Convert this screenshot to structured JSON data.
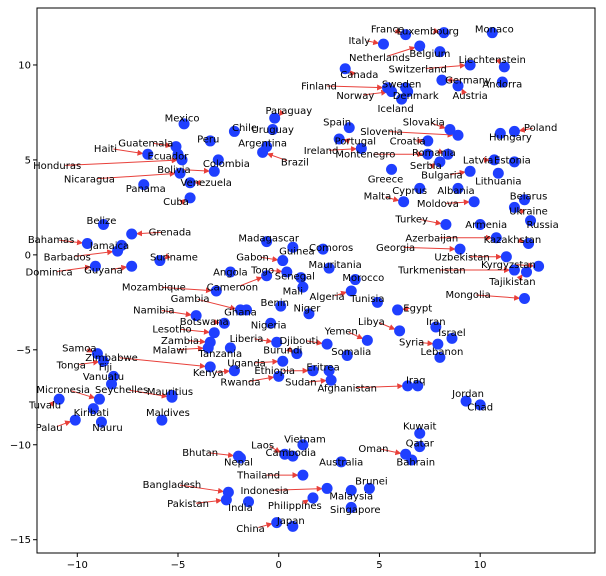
{
  "chart_data": {
    "type": "scatter",
    "title": "",
    "xlabel": "",
    "ylabel": "",
    "xlim": [
      -12,
      15.7
    ],
    "ylim": [
      -15.7,
      13
    ],
    "grid": false,
    "x_ticks": [
      -10,
      -5,
      0,
      5,
      10
    ],
    "y_ticks": [
      10,
      5,
      0,
      -5,
      -10,
      -15
    ],
    "marker_color": "#1f3fff",
    "arrow_color": "#e8403a",
    "points": [
      {
        "name": "France",
        "x": 6.3,
        "y": 11.6,
        "lx": 5.4,
        "ly": 11.9
      },
      {
        "name": "Luxembourg",
        "x": 8.2,
        "y": 11.7,
        "lx": 7.4,
        "ly": 11.8
      },
      {
        "name": "Monaco",
        "x": 10.6,
        "y": 11.7,
        "lx": 10.7,
        "ly": 11.9
      },
      {
        "name": "Italy",
        "x": 5.2,
        "y": 11.1,
        "lx": 4.0,
        "ly": 11.3
      },
      {
        "name": "Netherlands",
        "x": 7.0,
        "y": 11.0,
        "lx": 5.0,
        "ly": 10.4
      },
      {
        "name": "Belgium",
        "x": 8.0,
        "y": 10.7,
        "lx": 7.5,
        "ly": 10.6
      },
      {
        "name": "Liechtenstein",
        "x": 11.2,
        "y": 9.9,
        "lx": 10.6,
        "ly": 10.3
      },
      {
        "name": "Switzerland",
        "x": 9.5,
        "y": 10.0,
        "lx": 6.9,
        "ly": 9.8
      },
      {
        "name": "Canada",
        "x": 3.3,
        "y": 9.8,
        "lx": 4.0,
        "ly": 9.5
      },
      {
        "name": "Germany",
        "x": 8.1,
        "y": 9.2,
        "lx": 9.4,
        "ly": 9.2
      },
      {
        "name": "Andorra",
        "x": 11.1,
        "y": 9.1,
        "lx": 11.1,
        "ly": 9.0
      },
      {
        "name": "Finland",
        "x": 5.4,
        "y": 8.8,
        "lx": 2.0,
        "ly": 8.9
      },
      {
        "name": "Sweden",
        "x": 6.3,
        "y": 8.8,
        "lx": 6.1,
        "ly": 9.0
      },
      {
        "name": "Norway",
        "x": 5.6,
        "y": 8.6,
        "lx": 3.8,
        "ly": 8.4
      },
      {
        "name": "Denmark",
        "x": 6.4,
        "y": 8.6,
        "lx": 6.8,
        "ly": 8.4
      },
      {
        "name": "Austria",
        "x": 8.9,
        "y": 8.9,
        "lx": 9.5,
        "ly": 8.4
      },
      {
        "name": "Iceland",
        "x": 6.1,
        "y": 8.2,
        "lx": 5.8,
        "ly": 7.7
      },
      {
        "name": "Mexico",
        "x": -4.7,
        "y": 6.9,
        "lx": -4.8,
        "ly": 7.2
      },
      {
        "name": "Paraguay",
        "x": -0.2,
        "y": 7.2,
        "lx": 0.5,
        "ly": 7.6
      },
      {
        "name": "Spain",
        "x": 3.5,
        "y": 6.7,
        "lx": 2.9,
        "ly": 7.0
      },
      {
        "name": "Slovakia",
        "x": 8.5,
        "y": 6.6,
        "lx": 7.2,
        "ly": 7.0
      },
      {
        "name": "Poland",
        "x": 11.7,
        "y": 6.5,
        "lx": 13.0,
        "ly": 6.7
      },
      {
        "name": "Chile",
        "x": -2.2,
        "y": 6.5,
        "lx": -1.7,
        "ly": 6.7
      },
      {
        "name": "Uruguay",
        "x": -0.3,
        "y": 6.6,
        "lx": -0.3,
        "ly": 6.6
      },
      {
        "name": "Slovenia",
        "x": 8.9,
        "y": 6.3,
        "lx": 5.1,
        "ly": 6.5
      },
      {
        "name": "Hungary",
        "x": 11.0,
        "y": 6.4,
        "lx": 11.5,
        "ly": 6.2
      },
      {
        "name": "Peru",
        "x": -3.4,
        "y": 6.0,
        "lx": -3.5,
        "ly": 6.1
      },
      {
        "name": "Portugal",
        "x": 3.0,
        "y": 6.1,
        "lx": 3.8,
        "ly": 6.0
      },
      {
        "name": "Croatia",
        "x": 7.4,
        "y": 6.0,
        "lx": 6.4,
        "ly": 6.0
      },
      {
        "name": "Argentina",
        "x": -0.6,
        "y": 5.7,
        "lx": -0.8,
        "ly": 5.9
      },
      {
        "name": "Guatemala",
        "x": -5.1,
        "y": 5.7,
        "lx": -6.6,
        "ly": 5.9
      },
      {
        "name": "Ireland",
        "x": 4.1,
        "y": 5.6,
        "lx": 2.1,
        "ly": 5.5
      },
      {
        "name": "Haiti",
        "x": -6.5,
        "y": 5.3,
        "lx": -8.6,
        "ly": 5.6
      },
      {
        "name": "Montenegro",
        "x": 7.4,
        "y": 5.3,
        "lx": 4.3,
        "ly": 5.3
      },
      {
        "name": "Romania",
        "x": 8.4,
        "y": 5.3,
        "lx": 7.7,
        "ly": 5.4
      },
      {
        "name": "Ecuador",
        "x": -5.0,
        "y": 5.3,
        "lx": -5.5,
        "ly": 5.2
      },
      {
        "name": "Estonia",
        "x": 11.7,
        "y": 4.9,
        "lx": 11.6,
        "ly": 5.0
      },
      {
        "name": "Latvia",
        "x": 10.7,
        "y": 5.0,
        "lx": 9.9,
        "ly": 5.0
      },
      {
        "name": "Brazil",
        "x": -0.8,
        "y": 5.4,
        "lx": 0.8,
        "ly": 4.9
      },
      {
        "name": "Honduras",
        "x": -4.8,
        "y": 5.0,
        "lx": -11.0,
        "ly": 4.7
      },
      {
        "name": "Colombia",
        "x": -3.0,
        "y": 5.0,
        "lx": -2.6,
        "ly": 4.8
      },
      {
        "name": "Serbia",
        "x": 8.0,
        "y": 4.9,
        "lx": 7.3,
        "ly": 4.7
      },
      {
        "name": "Bolivia",
        "x": -3.2,
        "y": 4.4,
        "lx": -5.2,
        "ly": 4.5
      },
      {
        "name": "Nicaragua",
        "x": -4.9,
        "y": 4.3,
        "lx": -9.4,
        "ly": 4.0
      },
      {
        "name": "Bulgaria",
        "x": 9.5,
        "y": 4.4,
        "lx": 8.1,
        "ly": 4.2
      },
      {
        "name": "Lithuania",
        "x": 10.9,
        "y": 4.3,
        "lx": 10.9,
        "ly": 3.9
      },
      {
        "name": "Greece",
        "x": 5.6,
        "y": 4.5,
        "lx": 5.3,
        "ly": 4.0
      },
      {
        "name": "Venezuela",
        "x": -4.4,
        "y": 3.8,
        "lx": -3.6,
        "ly": 3.8
      },
      {
        "name": "Panama",
        "x": -6.7,
        "y": 3.7,
        "lx": -6.6,
        "ly": 3.5
      },
      {
        "name": "Cyprus",
        "x": 7.0,
        "y": 3.5,
        "lx": 6.5,
        "ly": 3.4
      },
      {
        "name": "Albania",
        "x": 8.9,
        "y": 3.5,
        "lx": 8.8,
        "ly": 3.4
      },
      {
        "name": "Belarus",
        "x": 12.2,
        "y": 2.9,
        "lx": 12.4,
        "ly": 3.1
      },
      {
        "name": "Malta",
        "x": 6.2,
        "y": 2.8,
        "lx": 4.9,
        "ly": 3.1
      },
      {
        "name": "Moldova",
        "x": 9.7,
        "y": 2.8,
        "lx": 7.9,
        "ly": 2.7
      },
      {
        "name": "Ukraine",
        "x": 11.7,
        "y": 2.5,
        "lx": 12.4,
        "ly": 2.3
      },
      {
        "name": "Cuba",
        "x": -4.4,
        "y": 3.0,
        "lx": -5.1,
        "ly": 2.8
      },
      {
        "name": "Belize",
        "x": -8.7,
        "y": 1.6,
        "lx": -8.8,
        "ly": 1.8
      },
      {
        "name": "Turkey",
        "x": 8.3,
        "y": 1.6,
        "lx": 6.6,
        "ly": 1.9
      },
      {
        "name": "Armenia",
        "x": 10.0,
        "y": 1.6,
        "lx": 10.3,
        "ly": 1.6
      },
      {
        "name": "Russia",
        "x": 12.5,
        "y": 1.8,
        "lx": 13.1,
        "ly": 1.6
      },
      {
        "name": "Grenada",
        "x": -7.3,
        "y": 1.1,
        "lx": -5.4,
        "ly": 1.2
      },
      {
        "name": "Madagascar",
        "x": -0.6,
        "y": 0.7,
        "lx": -0.5,
        "ly": 0.9
      },
      {
        "name": "Azerbaijan",
        "x": 10.8,
        "y": 0.9,
        "lx": 7.6,
        "ly": 0.9
      },
      {
        "name": "Kazakhstan",
        "x": 12.4,
        "y": 0.6,
        "lx": 11.6,
        "ly": 0.8
      },
      {
        "name": "Bahamas",
        "x": -9.5,
        "y": 0.6,
        "lx": -11.3,
        "ly": 0.8
      },
      {
        "name": "Jamaica",
        "x": -7.8,
        "y": 0.5,
        "lx": -8.4,
        "ly": 0.5
      },
      {
        "name": "Guinea",
        "x": 0.7,
        "y": 0.4,
        "lx": 0.9,
        "ly": 0.2
      },
      {
        "name": "Comoros",
        "x": 2.2,
        "y": 0.3,
        "lx": 2.6,
        "ly": 0.4
      },
      {
        "name": "Georgia",
        "x": 9.0,
        "y": 0.3,
        "lx": 5.8,
        "ly": 0.4
      },
      {
        "name": "Gabon",
        "x": 0.2,
        "y": -0.3,
        "lx": -1.3,
        "ly": -0.1
      },
      {
        "name": "Barbados",
        "x": -8.0,
        "y": 0.2,
        "lx": -10.5,
        "ly": -0.1
      },
      {
        "name": "Suriname",
        "x": -5.9,
        "y": -0.3,
        "lx": -5.2,
        "ly": -0.1
      },
      {
        "name": "Uzbekistan",
        "x": 11.3,
        "y": -0.1,
        "lx": 9.1,
        "ly": -0.1
      },
      {
        "name": "Kyrgyzstan",
        "x": 12.9,
        "y": -0.6,
        "lx": 11.4,
        "ly": -0.5
      },
      {
        "name": "Mauritania",
        "x": 2.5,
        "y": -0.7,
        "lx": 2.8,
        "ly": -0.5
      },
      {
        "name": "Angola",
        "x": -2.4,
        "y": -0.9,
        "lx": -2.4,
        "ly": -0.9
      },
      {
        "name": "Togo",
        "x": 0.4,
        "y": -0.9,
        "lx": -0.8,
        "ly": -0.8
      },
      {
        "name": "Dominica",
        "x": -9.1,
        "y": -0.6,
        "lx": -11.4,
        "ly": -0.9
      },
      {
        "name": "Guyana",
        "x": -7.3,
        "y": -0.6,
        "lx": -8.7,
        "ly": -0.8
      },
      {
        "name": "Turkmenistan",
        "x": 11.7,
        "y": -0.8,
        "lx": 7.6,
        "ly": -0.8
      },
      {
        "name": "Senegal",
        "x": 1.1,
        "y": -1.2,
        "lx": 0.8,
        "ly": -1.1
      },
      {
        "name": "Morocco",
        "x": 3.8,
        "y": -1.3,
        "lx": 4.2,
        "ly": -1.2
      },
      {
        "name": "Tajikistan",
        "x": 12.3,
        "y": -0.9,
        "lx": 11.6,
        "ly": -1.4
      },
      {
        "name": "Cameroon",
        "x": -0.6,
        "y": -1.1,
        "lx": -2.3,
        "ly": -1.7
      },
      {
        "name": "Mali",
        "x": 1.2,
        "y": -1.7,
        "lx": 0.7,
        "ly": -1.9
      },
      {
        "name": "Mozambique",
        "x": -3.1,
        "y": -1.9,
        "lx": -6.2,
        "ly": -1.7
      },
      {
        "name": "Algeria",
        "x": 3.6,
        "y": -1.9,
        "lx": 2.4,
        "ly": -2.2
      },
      {
        "name": "Mongolia",
        "x": 12.2,
        "y": -2.3,
        "lx": 9.4,
        "ly": -2.1
      },
      {
        "name": "Gambia",
        "x": -1.9,
        "y": -2.9,
        "lx": -4.4,
        "ly": -2.3
      },
      {
        "name": "Benin",
        "x": 0.1,
        "y": -2.7,
        "lx": -0.2,
        "ly": -2.5
      },
      {
        "name": "Tunisia",
        "x": 4.9,
        "y": -2.5,
        "lx": 4.4,
        "ly": -2.3
      },
      {
        "name": "Niger",
        "x": 1.5,
        "y": -3.1,
        "lx": 1.4,
        "ly": -2.8
      },
      {
        "name": "Egypt",
        "x": 5.9,
        "y": -2.9,
        "lx": 6.9,
        "ly": -2.8
      },
      {
        "name": "Namibia",
        "x": -4.1,
        "y": -3.2,
        "lx": -6.2,
        "ly": -2.9
      },
      {
        "name": "Ghana",
        "x": -1.6,
        "y": -2.9,
        "lx": -1.9,
        "ly": -3.0
      },
      {
        "name": "Botswana",
        "x": -2.7,
        "y": -3.6,
        "lx": -3.7,
        "ly": -3.5
      },
      {
        "name": "Iran",
        "x": 7.8,
        "y": -3.8,
        "lx": 7.8,
        "ly": -3.5
      },
      {
        "name": "Libya",
        "x": 6.0,
        "y": -4.0,
        "lx": 4.6,
        "ly": -3.5
      },
      {
        "name": "Nigeria",
        "x": -0.4,
        "y": -3.6,
        "lx": -0.5,
        "ly": -3.7
      },
      {
        "name": "Lesotho",
        "x": -3.2,
        "y": -4.1,
        "lx": -5.3,
        "ly": -3.9
      },
      {
        "name": "Yemen",
        "x": 4.4,
        "y": -4.5,
        "lx": 3.1,
        "ly": -4.0
      },
      {
        "name": "Israel",
        "x": 8.6,
        "y": -4.4,
        "lx": 8.6,
        "ly": -4.1
      },
      {
        "name": "Liberia",
        "x": -0.1,
        "y": -4.6,
        "lx": -1.6,
        "ly": -4.4
      },
      {
        "name": "Djibouti",
        "x": 2.4,
        "y": -4.7,
        "lx": 1.0,
        "ly": -4.5
      },
      {
        "name": "Zambia",
        "x": -3.4,
        "y": -4.6,
        "lx": -4.9,
        "ly": -4.5
      },
      {
        "name": "Syria",
        "x": 7.9,
        "y": -4.7,
        "lx": 6.6,
        "ly": -4.6
      },
      {
        "name": "Samoa",
        "x": -9.0,
        "y": -5.2,
        "lx": -9.9,
        "ly": -4.9
      },
      {
        "name": "Malawi",
        "x": -3.5,
        "y": -4.9,
        "lx": -5.4,
        "ly": -5.0
      },
      {
        "name": "Burundi",
        "x": 0.9,
        "y": -5.2,
        "lx": 0.2,
        "ly": -5.0
      },
      {
        "name": "Tanzania",
        "x": -2.4,
        "y": -4.9,
        "lx": -2.9,
        "ly": -5.2
      },
      {
        "name": "Somalia",
        "x": 3.4,
        "y": -5.3,
        "lx": 3.6,
        "ly": -5.1
      },
      {
        "name": "Lebanon",
        "x": 8.0,
        "y": -5.4,
        "lx": 8.1,
        "ly": -5.1
      },
      {
        "name": "Zimbabwe",
        "x": -3.4,
        "y": -5.9,
        "lx": -8.3,
        "ly": -5.4
      },
      {
        "name": "Uganda",
        "x": 0.2,
        "y": -5.6,
        "lx": -1.6,
        "ly": -5.7
      },
      {
        "name": "Tonga",
        "x": -8.7,
        "y": -5.6,
        "lx": -10.3,
        "ly": -5.8
      },
      {
        "name": "Fiji",
        "x": -8.2,
        "y": -6.4,
        "lx": -8.6,
        "ly": -5.9
      },
      {
        "name": "Eritrea",
        "x": 2.5,
        "y": -6.1,
        "lx": 2.2,
        "ly": -5.9
      },
      {
        "name": "Ethiopia",
        "x": 1.7,
        "y": -6.1,
        "lx": -0.2,
        "ly": -6.1
      },
      {
        "name": "Kenya",
        "x": -2.2,
        "y": -6.1,
        "lx": -3.5,
        "ly": -6.2
      },
      {
        "name": "Vanuatu",
        "x": -8.3,
        "y": -6.8,
        "lx": -8.7,
        "ly": -6.4
      },
      {
        "name": "Sudan",
        "x": 2.6,
        "y": -6.6,
        "lx": 1.1,
        "ly": -6.7
      },
      {
        "name": "Rwanda",
        "x": 0.0,
        "y": -6.4,
        "lx": -1.9,
        "ly": -6.7
      },
      {
        "name": "Iraq",
        "x": 6.9,
        "y": -6.9,
        "lx": 6.8,
        "ly": -6.6
      },
      {
        "name": "Seychelles",
        "x": -5.3,
        "y": -7.5,
        "lx": -7.8,
        "ly": -7.1
      },
      {
        "name": "Mauritius",
        "x": -5.3,
        "y": -7.4,
        "lx": -5.4,
        "ly": -7.2
      },
      {
        "name": "Afghanistan",
        "x": 6.4,
        "y": -6.9,
        "lx": 3.4,
        "ly": -7.0
      },
      {
        "name": "Micronesia",
        "x": -8.9,
        "y": -7.6,
        "lx": -10.7,
        "ly": -7.1
      },
      {
        "name": "Jordan",
        "x": 9.3,
        "y": -7.7,
        "lx": 9.4,
        "ly": -7.3
      },
      {
        "name": "Tuvalu",
        "x": -10.9,
        "y": -7.6,
        "lx": -11.6,
        "ly": -7.9
      },
      {
        "name": "Kiribati",
        "x": -9.2,
        "y": -8.1,
        "lx": -9.3,
        "ly": -8.3
      },
      {
        "name": "Chad",
        "x": 10.0,
        "y": -7.9,
        "lx": 10.0,
        "ly": -8.0
      },
      {
        "name": "Maldives",
        "x": -5.8,
        "y": -8.7,
        "lx": -5.5,
        "ly": -8.3
      },
      {
        "name": "Palau",
        "x": -10.1,
        "y": -8.7,
        "lx": -11.4,
        "ly": -9.1
      },
      {
        "name": "Nauru",
        "x": -8.8,
        "y": -8.8,
        "lx": -8.5,
        "ly": -9.1
      },
      {
        "name": "Kuwait",
        "x": 7.0,
        "y": -9.4,
        "lx": 7.0,
        "ly": -9.0
      },
      {
        "name": "Vietnam",
        "x": 1.2,
        "y": -10.0,
        "lx": 1.3,
        "ly": -9.7
      },
      {
        "name": "Qatar",
        "x": 7.0,
        "y": -10.1,
        "lx": 7.0,
        "ly": -9.9
      },
      {
        "name": "Laos",
        "x": 0.3,
        "y": -10.5,
        "lx": -0.8,
        "ly": -10.0
      },
      {
        "name": "Oman",
        "x": 6.3,
        "y": -10.5,
        "lx": 4.7,
        "ly": -10.2
      },
      {
        "name": "Cambodia",
        "x": 0.7,
        "y": -10.6,
        "lx": 0.6,
        "ly": -10.4
      },
      {
        "name": "Bhutan",
        "x": -2.0,
        "y": -10.6,
        "lx": -3.9,
        "ly": -10.4
      },
      {
        "name": "Bahrain",
        "x": 6.6,
        "y": -10.8,
        "lx": 6.8,
        "ly": -10.9
      },
      {
        "name": "Nepal",
        "x": -1.9,
        "y": -10.7,
        "lx": -2.0,
        "ly": -10.9
      },
      {
        "name": "Australia",
        "x": 3.1,
        "y": -10.9,
        "lx": 3.1,
        "ly": -10.9
      },
      {
        "name": "Thailand",
        "x": 1.2,
        "y": -11.6,
        "lx": -1.0,
        "ly": -11.6
      },
      {
        "name": "Brunei",
        "x": 4.5,
        "y": -12.3,
        "lx": 4.6,
        "ly": -11.9
      },
      {
        "name": "Bangladesh",
        "x": -2.5,
        "y": -12.5,
        "lx": -5.3,
        "ly": -12.1
      },
      {
        "name": "Indonesia",
        "x": 2.4,
        "y": -12.3,
        "lx": -0.7,
        "ly": -12.4
      },
      {
        "name": "Malaysia",
        "x": 3.6,
        "y": -12.4,
        "lx": 3.6,
        "ly": -12.7
      },
      {
        "name": "Philippines",
        "x": 1.7,
        "y": -12.8,
        "lx": 0.8,
        "ly": -13.2
      },
      {
        "name": "Pakistan",
        "x": -2.6,
        "y": -12.9,
        "lx": -4.5,
        "ly": -13.1
      },
      {
        "name": "India",
        "x": -1.5,
        "y": -13.0,
        "lx": -1.9,
        "ly": -13.3
      },
      {
        "name": "Singapore",
        "x": 3.6,
        "y": -13.3,
        "lx": 3.8,
        "ly": -13.4
      },
      {
        "name": "Japan",
        "x": 0.7,
        "y": -14.3,
        "lx": 0.6,
        "ly": -14.0
      },
      {
        "name": "China",
        "x": -0.1,
        "y": -14.1,
        "lx": -1.4,
        "ly": -14.4
      }
    ]
  }
}
